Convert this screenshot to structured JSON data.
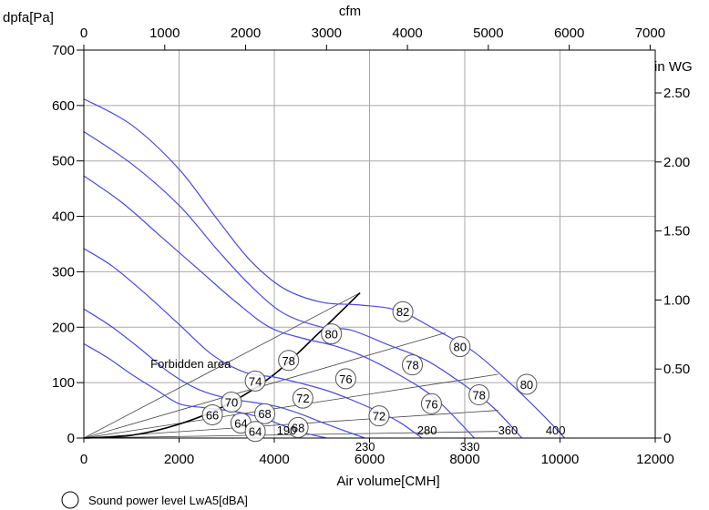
{
  "chart_data": {
    "type": "line",
    "ylabel_left": "dpfa[Pa]",
    "xlabel_bottom": "Air volume[CMH]",
    "xlabel_top": "cfm",
    "ylabel_right": "in WG",
    "xlim": [
      0,
      12000
    ],
    "ylim": [
      0,
      700
    ],
    "grid": true,
    "bottom_ticks": [
      "0",
      "2000",
      "4000",
      "6000",
      "8000",
      "10000",
      "12000"
    ],
    "left_ticks": [
      "0",
      "100",
      "200",
      "300",
      "400",
      "500",
      "600",
      "700"
    ],
    "top_ticks": [
      "0",
      "1000",
      "2000",
      "3000",
      "4000",
      "5000",
      "6000",
      "7000"
    ],
    "right_ticks": [
      "0",
      "0.50",
      "1.00",
      "1.50",
      "2.00",
      "2.50"
    ],
    "annotation": "Forbidden area",
    "legend_text": "Sound power level LwA5[dBA]",
    "colors": {
      "curve": "#4a4ae0",
      "boundary": "#000000",
      "grid": "#a8a8a8",
      "sysline": "#444444"
    },
    "boundary": {
      "x": [
        0,
        1000,
        2000,
        3000,
        4000,
        5000,
        5800
      ],
      "y": [
        0,
        5,
        25,
        60,
        115,
        195,
        262
      ]
    },
    "series": [
      {
        "name": "400",
        "x": [
          0,
          1000,
          2000,
          2800,
          3500,
          4200,
          5000,
          5800,
          6600,
          7400,
          8200,
          9000,
          9600,
          10100
        ],
        "y": [
          612,
          565,
          485,
          395,
          320,
          270,
          245,
          240,
          230,
          195,
          155,
          95,
          45,
          0
        ]
      },
      {
        "name": "360",
        "x": [
          0,
          1000,
          2000,
          2800,
          3500,
          4200,
          5000,
          5600,
          6400,
          7200,
          8000,
          8600,
          9200
        ],
        "y": [
          553,
          495,
          420,
          340,
          275,
          225,
          200,
          195,
          168,
          140,
          95,
          55,
          0
        ]
      },
      {
        "name": "330",
        "x": [
          0,
          800,
          1600,
          2400,
          3200,
          3900,
          4600,
          5200,
          5800,
          6600,
          7400,
          8200
        ],
        "y": [
          473,
          425,
          365,
          305,
          245,
          200,
          180,
          168,
          150,
          115,
          70,
          0
        ]
      },
      {
        "name": "280",
        "x": [
          0,
          600,
          1300,
          2000,
          2700,
          3400,
          4000,
          4500,
          5200,
          6000,
          6600,
          7100
        ],
        "y": [
          342,
          310,
          260,
          205,
          150,
          118,
          110,
          100,
          83,
          55,
          30,
          0
        ]
      },
      {
        "name": "230",
        "x": [
          0,
          600,
          1200,
          1800,
          2400,
          3000,
          3500,
          4000,
          4500,
          5100,
          5900
        ],
        "y": [
          233,
          200,
          160,
          118,
          88,
          72,
          65,
          58,
          45,
          25,
          0
        ]
      },
      {
        "name": "190",
        "x": [
          0,
          500,
          1000,
          1500,
          2000,
          2500,
          3000,
          3400,
          3800,
          4200,
          4600,
          5100
        ],
        "y": [
          170,
          145,
          115,
          88,
          62,
          55,
          50,
          44,
          35,
          22,
          10,
          0
        ]
      }
    ],
    "system_lines": [
      {
        "x": [
          0,
          5800
        ],
        "y": [
          0,
          262
        ]
      },
      {
        "x": [
          0,
          7600
        ],
        "y": [
          0,
          190
        ]
      },
      {
        "x": [
          0,
          8700
        ],
        "y": [
          0,
          115
        ]
      },
      {
        "x": [
          0,
          8700
        ],
        "y": [
          0,
          50
        ]
      },
      {
        "x": [
          0,
          8700
        ],
        "y": [
          0,
          12
        ]
      }
    ],
    "sound_power_badges": [
      {
        "x": 6700,
        "y": 228,
        "label": "82"
      },
      {
        "x": 5200,
        "y": 188,
        "label": "80"
      },
      {
        "x": 7900,
        "y": 165,
        "label": "80"
      },
      {
        "x": 4300,
        "y": 140,
        "label": "78"
      },
      {
        "x": 6900,
        "y": 132,
        "label": "78"
      },
      {
        "x": 3600,
        "y": 103,
        "label": "74"
      },
      {
        "x": 5500,
        "y": 107,
        "label": "76"
      },
      {
        "x": 9300,
        "y": 97,
        "label": "80"
      },
      {
        "x": 4600,
        "y": 72,
        "label": "72"
      },
      {
        "x": 8300,
        "y": 78,
        "label": "78"
      },
      {
        "x": 3100,
        "y": 65,
        "label": "70"
      },
      {
        "x": 3800,
        "y": 44,
        "label": "68"
      },
      {
        "x": 6200,
        "y": 40,
        "label": "72"
      },
      {
        "x": 7300,
        "y": 62,
        "label": "76"
      },
      {
        "x": 2700,
        "y": 42,
        "label": "66"
      },
      {
        "x": 3300,
        "y": 27,
        "label": "64"
      },
      {
        "x": 3600,
        "y": 12,
        "label": "64"
      },
      {
        "x": 4500,
        "y": 19,
        "label": "68"
      }
    ],
    "curve_labels": [
      {
        "x": 4050,
        "y": 15,
        "label": "190"
      },
      {
        "x": 5700,
        "y": -15,
        "label": "230"
      },
      {
        "x": 7000,
        "y": 15,
        "label": "280"
      },
      {
        "x": 7900,
        "y": -15,
        "label": "330"
      },
      {
        "x": 8700,
        "y": 15,
        "label": "360"
      },
      {
        "x": 9700,
        "y": 15,
        "label": "400"
      }
    ],
    "annotation_position": {
      "x": 1400,
      "y": 135
    }
  }
}
